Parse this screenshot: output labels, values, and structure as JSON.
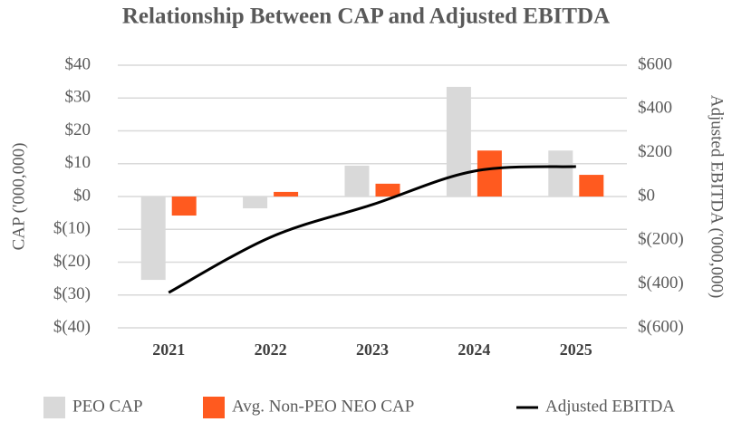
{
  "chart_data": {
    "type": "bar_line",
    "title": "Relationship Between CAP and Adjusted EBITDA",
    "y_label": "CAP ('000,000)",
    "y2_label": "Adjusted EBITDA ('000,000)",
    "categories": [
      "2021",
      "2022",
      "2023",
      "2024",
      "2025"
    ],
    "series": [
      {
        "name": "PEO CAP",
        "type": "bar",
        "color": "#d9d9d9",
        "values": [
          -25.4,
          -3.6,
          9.4,
          33.4,
          14
        ]
      },
      {
        "name": "Avg. Non-PEO NEO CAP",
        "type": "bar",
        "color": "#ff5a1f",
        "values": [
          -5.8,
          1.4,
          3.9,
          14,
          6.6
        ]
      },
      {
        "name": "Adjusted EBITDA",
        "type": "line",
        "axis": "y2",
        "color": "#000000",
        "values": [
          -439,
          -186,
          -37,
          116,
          137
        ]
      }
    ],
    "ylim": [
      -40,
      40
    ],
    "yticks": [
      {
        "value": -40,
        "label": "$(40)"
      },
      {
        "value": -30,
        "label": "$(30)"
      },
      {
        "value": -20,
        "label": "$(20)"
      },
      {
        "value": -10,
        "label": "$(10)"
      },
      {
        "value": 0,
        "label": "$0"
      },
      {
        "value": 10,
        "label": "$10"
      },
      {
        "value": 20,
        "label": "$20"
      },
      {
        "value": 30,
        "label": "$30"
      },
      {
        "value": 40,
        "label": "$40"
      }
    ],
    "y2lim": [
      -600,
      600
    ],
    "y2ticks": [
      {
        "value": -600,
        "label": "$(600)"
      },
      {
        "value": -400,
        "label": "$(400)"
      },
      {
        "value": -200,
        "label": "$(200)"
      },
      {
        "value": 0,
        "label": "$0"
      },
      {
        "value": 200,
        "label": "$200"
      },
      {
        "value": 400,
        "label": "$400"
      },
      {
        "value": 600,
        "label": "$600"
      }
    ],
    "grid": true,
    "legend": "bottom"
  }
}
